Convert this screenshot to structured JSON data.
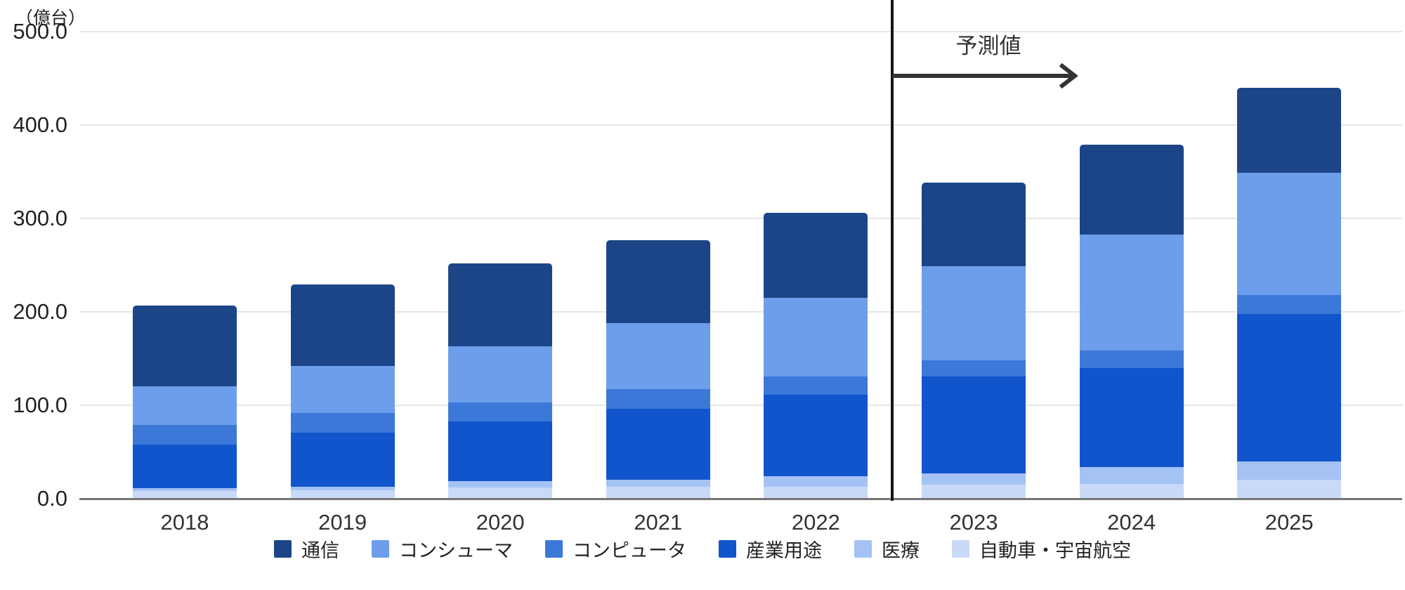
{
  "chart_data": {
    "type": "bar",
    "subtype": "stacked",
    "unit_label": "（億台）",
    "categories": [
      "2018",
      "2019",
      "2020",
      "2021",
      "2022",
      "2023",
      "2024",
      "2025"
    ],
    "series": [
      {
        "name": "通信",
        "color": "#1c4587",
        "values": [
          87,
          87,
          89,
          89,
          91,
          89,
          96,
          91
        ]
      },
      {
        "name": "コンシューマ",
        "color": "#6d9eeb",
        "values": [
          41,
          50,
          60,
          71,
          84,
          101,
          124,
          131
        ]
      },
      {
        "name": "コンピュータ",
        "color": "#3c78d8",
        "values": [
          21,
          21,
          20,
          21,
          20,
          17,
          19,
          20
        ]
      },
      {
        "name": "産業用途",
        "color": "#1155cc",
        "values": [
          47,
          58,
          64,
          76,
          87,
          104,
          106,
          158
        ]
      },
      {
        "name": "医療",
        "color": "#a4c2f4",
        "values": [
          3,
          4,
          7,
          7,
          11,
          12,
          18,
          20
        ]
      },
      {
        "name": "自動車・宇宙航空",
        "color": "#c9daf8",
        "values": [
          8,
          9,
          12,
          13,
          13,
          15,
          16,
          20
        ]
      }
    ],
    "stack_order": "first series on top",
    "y_ticks": [
      "0.0",
      "100.0",
      "200.0",
      "300.0",
      "400.0",
      "500.0"
    ],
    "ylim": [
      0,
      500
    ],
    "grid": true,
    "gridline_color": "#e6e6e6",
    "baseline_color": "#757575",
    "forecast": {
      "label": "予測値",
      "divider_between": [
        "2022",
        "2023"
      ],
      "arrow_direction": "right",
      "line_color": "#141414",
      "arrow_color": "#333333"
    },
    "legend_position": "bottom",
    "xlabel": "",
    "ylabel": "（億台）",
    "title": ""
  }
}
